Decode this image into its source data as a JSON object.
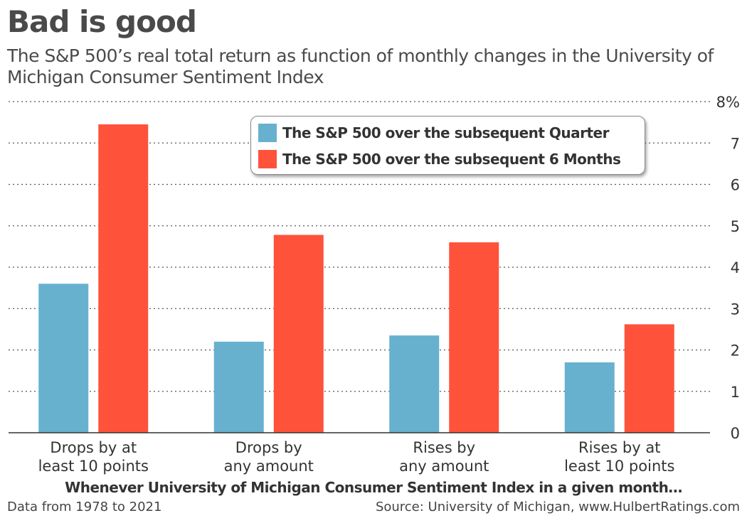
{
  "title": "Bad is good",
  "subtitle": "The S&P 500’s real total return as function of monthly changes in the University of Michigan Consumer Sentiment Index",
  "footer": {
    "left": "Data from 1978 to 2021",
    "right": "Source: University of Michigan, www.HulbertRatings.com"
  },
  "chart_data": {
    "type": "bar",
    "title": "Bad is good",
    "xlabel": "Whenever University of Michigan Consumer Sentiment Index in a given month…",
    "ylabel": "",
    "ylim": [
      0,
      8
    ],
    "y_ticks": [
      "0",
      "1",
      "2",
      "3",
      "4",
      "5",
      "6",
      "7",
      "8%"
    ],
    "y_axis_side": "right",
    "grid": "horizontal dotted",
    "legend_position": "top-center",
    "categories": [
      [
        "Drops by at",
        "least 10 points"
      ],
      [
        "Drops by",
        "any amount"
      ],
      [
        "Rises by",
        "any amount"
      ],
      [
        "Rises by at",
        "least 10 points"
      ]
    ],
    "series": [
      {
        "name": "The S&P 500 over the subsequent Quarter",
        "color": "#67b1cf",
        "values": [
          3.6,
          2.2,
          2.35,
          1.7
        ]
      },
      {
        "name": "The S&P 500 over the subsequent 6 Months",
        "color": "#ff523b",
        "values": [
          7.45,
          4.78,
          4.6,
          2.62
        ]
      }
    ]
  }
}
